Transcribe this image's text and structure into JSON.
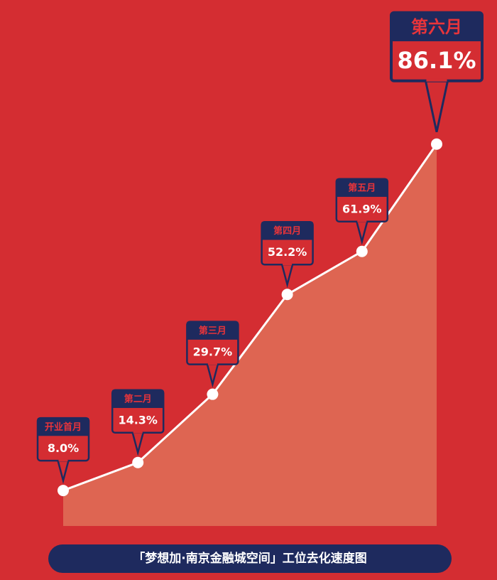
{
  "chart_data": {
    "type": "area",
    "title": "「梦想加·南京金融城空间」工位去化速度图",
    "categories": [
      "开业首月",
      "第二月",
      "第三月",
      "第四月",
      "第五月",
      "第六月"
    ],
    "values": [
      8.0,
      14.3,
      29.7,
      52.2,
      61.9,
      86.1
    ],
    "value_labels": [
      "8.0%",
      "14.3%",
      "29.7%",
      "52.2%",
      "61.9%",
      "86.1%"
    ],
    "color": "#de6552",
    "line_color": "#ffffff",
    "callout_color": "#1e2a5e"
  }
}
